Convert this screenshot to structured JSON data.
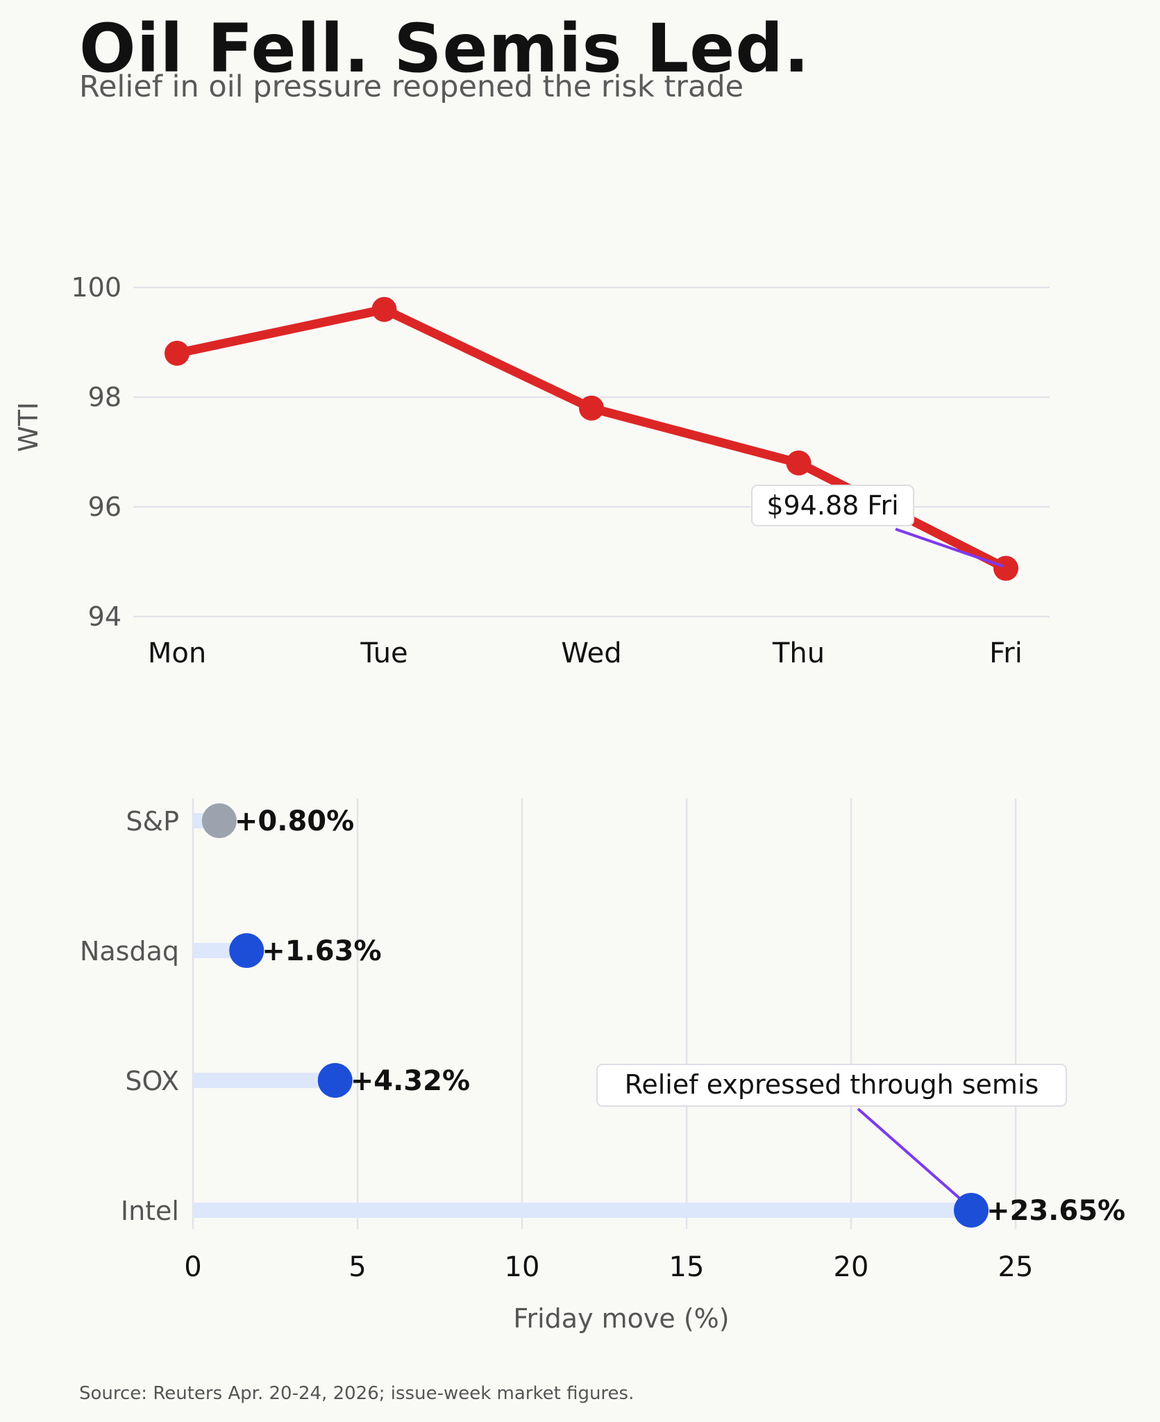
{
  "header": {
    "title": "Oil Fell. Semis Led.",
    "subtitle": "Relief in oil pressure reopened the risk trade"
  },
  "footer": {
    "source": "Source: Reuters Apr. 20-24, 2026; issue-week market figures."
  },
  "colors": {
    "background": "#f9f9f6",
    "grid": "#e3e3ea",
    "oil_line": "#dc2626",
    "annotation_arrow": "#7c3aed",
    "index_dot": "#1d4ed8",
    "sp_dot": "#9ca3af",
    "bar_track": "#dde7fb",
    "axis_text": "#555555"
  },
  "chart_data": [
    {
      "type": "line",
      "title": "",
      "xlabel": "",
      "ylabel": "WTI",
      "categories": [
        "Mon",
        "Tue",
        "Wed",
        "Thu",
        "Fri"
      ],
      "values": [
        98.8,
        99.6,
        97.8,
        96.8,
        94.88
      ],
      "ylim": [
        94,
        100
      ],
      "yticks": [
        94,
        96,
        98,
        100
      ],
      "grid": true,
      "annotation": {
        "text": "$94.88 Fri",
        "target_category": "Fri",
        "target_value": 94.88
      }
    },
    {
      "type": "bar",
      "orientation": "horizontal",
      "style": "lollipop",
      "title": "",
      "xlabel": "Friday move (%)",
      "ylabel": "",
      "categories": [
        "S&P",
        "Nasdaq",
        "SOX",
        "Intel"
      ],
      "values": [
        0.8,
        1.63,
        4.32,
        23.65
      ],
      "labels": [
        "+0.80%",
        "+1.63%",
        "+4.32%",
        "+23.65%"
      ],
      "xlim": [
        0,
        25
      ],
      "xticks": [
        0,
        5,
        10,
        15,
        20,
        25
      ],
      "grid": true,
      "annotation": {
        "text": "Relief expressed through semis",
        "target_category": "Intel",
        "target_value": 23.65
      }
    }
  ]
}
